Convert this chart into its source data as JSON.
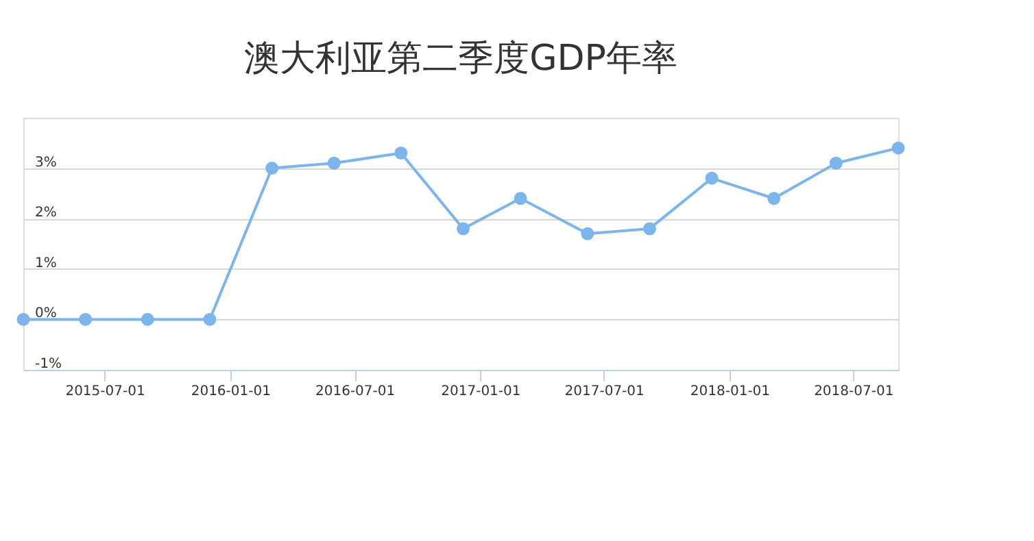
{
  "chart_data": {
    "type": "line",
    "title": "澳大利亚第二季度GDP年率",
    "x": [
      "2015-03-04",
      "2015-06-03",
      "2015-09-02",
      "2015-12-02",
      "2016-03-02",
      "2016-06-01",
      "2016-09-07",
      "2016-12-07",
      "2017-03-01",
      "2017-06-07",
      "2017-09-06",
      "2017-12-06",
      "2018-03-07",
      "2018-06-06",
      "2018-09-05"
    ],
    "series": [
      {
        "color": "#7cb5ec",
        "values": [
          0,
          0,
          0,
          0,
          3.0,
          3.1,
          3.3,
          1.8,
          2.4,
          1.7,
          1.8,
          2.8,
          2.4,
          3.1,
          3.4
        ]
      }
    ],
    "xlim": [
      "2015-03-04",
      "2018-09-05"
    ],
    "xticks": [
      "2015-07-01",
      "2016-01-01",
      "2016-07-01",
      "2017-01-01",
      "2017-07-01",
      "2018-01-01",
      "2018-07-01"
    ],
    "ylim": [
      -1,
      4
    ],
    "yticks": [
      {
        "value": -1,
        "label": "-1%"
      },
      {
        "value": 0,
        "label": "0%"
      },
      {
        "value": 1,
        "label": "1%"
      },
      {
        "value": 2,
        "label": "2%"
      },
      {
        "value": 3,
        "label": "3%"
      }
    ],
    "grid": "y",
    "marker": "circle",
    "line_style": "solid",
    "legend": false
  }
}
